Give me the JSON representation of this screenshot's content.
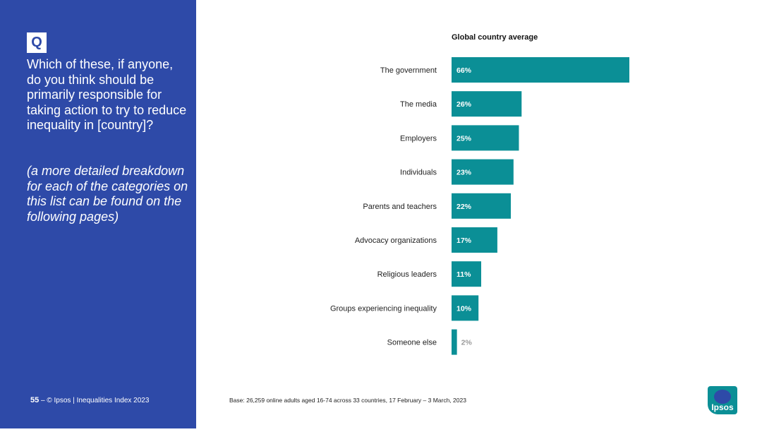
{
  "sidebar": {
    "badge": "Q",
    "question": "Which of these, if anyone, do you think should be primarily responsible for taking action to try to reduce inequality in [country]?",
    "note": "(a more detailed breakdown for each of the categories on this list can be found on the following pages)",
    "page_number": "55",
    "footer": "– © Ipsos | Inequalities Index 2023"
  },
  "base_note": "Base: 26,259 online adults aged 16-74 across 33 countries, 17 February – 3 March, 2023",
  "logo_text": "Ipsos",
  "colors": {
    "bar": "#0b8f96",
    "sidebar": "#2e4aa8",
    "inside_label": "#ffffff",
    "outside_label": "#9a9a9a"
  },
  "chart_data": {
    "type": "bar",
    "orientation": "horizontal",
    "title": "Global country average",
    "categories": [
      "The government",
      "The media",
      "Employers",
      "Individuals",
      "Parents and teachers",
      "Advocacy organizations",
      "Religious leaders",
      "Groups experiencing inequality",
      "Someone else"
    ],
    "values": [
      66,
      26,
      25,
      23,
      22,
      17,
      11,
      10,
      2
    ],
    "value_labels": [
      "66%",
      "26%",
      "25%",
      "23%",
      "22%",
      "17%",
      "11%",
      "10%",
      "2%"
    ],
    "unit": "%",
    "xlim": [
      0,
      100
    ],
    "grid": false,
    "legend": "none"
  }
}
